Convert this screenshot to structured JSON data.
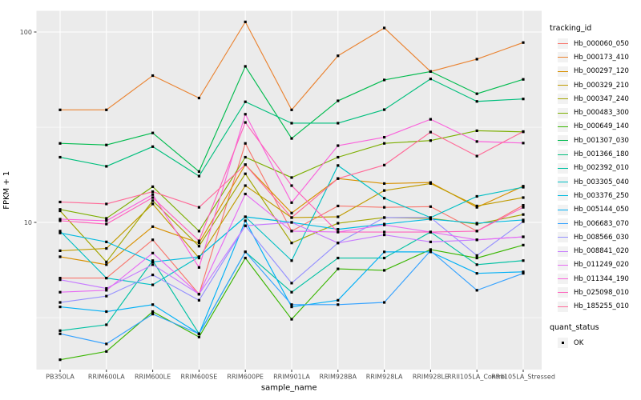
{
  "chart_data": {
    "type": "line",
    "title": "",
    "xlabel": "sample_name",
    "ylabel": "FPKM + 1",
    "y_scale": "log10",
    "y_ticks": [
      {
        "label": "100",
        "value": 100
      },
      {
        "label": "10",
        "value": 10
      }
    ],
    "y_minor_values": [
      31.6,
      3.16
    ],
    "ylim": [
      1.8,
      128
    ],
    "grid": true,
    "panel_bg": "#EBEBEB",
    "grid_color": "#FFFFFF",
    "tick_label_color": "#4D4D4D",
    "marker_color": "#000000",
    "legend_position": "right",
    "legend_title": "tracking_id",
    "categories": [
      "PB350LA",
      "RRIM600LA",
      "RRIM600LE",
      "RRIM600SE",
      "RRIM600PE",
      "RRIM901LA",
      "RRIM928BA",
      "RRIM928LA",
      "RRIM928LE",
      "RRII105LA_Control",
      "RRII105LA_Stressed"
    ],
    "series": [
      {
        "name": "Hb_000060_050",
        "color": "#F8766D",
        "values": [
          5.1,
          5.1,
          8.1,
          4.2,
          26.0,
          9.0,
          12.2,
          12.0,
          12.1,
          9.0,
          12.3
        ]
      },
      {
        "name": "Hb_000173_410",
        "color": "#EA8331",
        "values": [
          39,
          39,
          59,
          45,
          113,
          39,
          75,
          105,
          62,
          72,
          88
        ]
      },
      {
        "name": "Hb_000297_120",
        "color": "#D89000",
        "values": [
          6.6,
          6.0,
          9.5,
          7.8,
          20.1,
          11.2,
          17.0,
          16.0,
          16.2,
          12.0,
          15.5
        ]
      },
      {
        "name": "Hb_000329_210",
        "color": "#C09B00",
        "values": [
          7.1,
          7.3,
          12.5,
          6.5,
          15.6,
          10.6,
          10.7,
          14.7,
          16.0,
          12.2,
          13.5
        ]
      },
      {
        "name": "Hb_000347_240",
        "color": "#A3A500",
        "values": [
          11.5,
          6.2,
          13.0,
          7.5,
          18.0,
          7.8,
          9.9,
          10.6,
          10.5,
          9.8,
          11.0
        ]
      },
      {
        "name": "Hb_000483_300",
        "color": "#7CAE00",
        "values": [
          11.7,
          10.5,
          15.4,
          9.0,
          22.0,
          17.2,
          22.0,
          26.0,
          26.9,
          30.3,
          29.9
        ]
      },
      {
        "name": "Hb_000649_140",
        "color": "#39B600",
        "values": [
          1.9,
          2.1,
          3.4,
          2.5,
          6.5,
          3.1,
          5.7,
          5.6,
          7.2,
          6.5,
          7.6
        ]
      },
      {
        "name": "Hb_001307_030",
        "color": "#00BB4E",
        "values": [
          26.0,
          25.5,
          29.5,
          18.5,
          66.0,
          27.6,
          43.5,
          56.0,
          62.0,
          47.4,
          56.4
        ]
      },
      {
        "name": "Hb_001366_180",
        "color": "#00BF7D",
        "values": [
          22.0,
          19.7,
          25.0,
          17.5,
          43.0,
          33.2,
          33.2,
          39.1,
          56.7,
          43.2,
          44.5
        ]
      },
      {
        "name": "Hb_002392_010",
        "color": "#00C1A3",
        "values": [
          2.7,
          2.9,
          6.3,
          2.6,
          7.0,
          4.3,
          6.5,
          6.5,
          8.9,
          6.0,
          6.3
        ]
      },
      {
        "name": "Hb_003305_040",
        "color": "#00BFC4",
        "values": [
          9.0,
          5.1,
          4.7,
          6.6,
          10.7,
          6.3,
          19.9,
          13.4,
          10.6,
          13.7,
          15.3
        ]
      },
      {
        "name": "Hb_003376_250",
        "color": "#00BAE0",
        "values": [
          8.8,
          7.9,
          6.2,
          6.6,
          10.7,
          10.0,
          9.2,
          9.8,
          10.4,
          9.9,
          10.3
        ]
      },
      {
        "name": "Hb_005144_050",
        "color": "#00B0F6",
        "values": [
          3.6,
          3.4,
          3.7,
          2.6,
          10.2,
          3.6,
          3.9,
          7.0,
          7.0,
          5.4,
          5.5
        ]
      },
      {
        "name": "Hb_006683_070",
        "color": "#35A2FF",
        "values": [
          2.6,
          2.3,
          3.3,
          2.6,
          7.0,
          3.7,
          3.7,
          3.8,
          7.1,
          4.4,
          5.4
        ]
      },
      {
        "name": "Hb_008566_030",
        "color": "#9590FF",
        "values": [
          3.8,
          4.1,
          5.3,
          3.9,
          9.6,
          4.8,
          7.8,
          10.6,
          10.6,
          6.7,
          10.1
        ]
      },
      {
        "name": "Hb_008841_020",
        "color": "#C77CFF",
        "values": [
          5.0,
          4.5,
          6.0,
          4.2,
          9.6,
          10.0,
          7.8,
          8.6,
          7.9,
          8.1,
          8.4
        ]
      },
      {
        "name": "Hb_011249_020",
        "color": "#E76BF3",
        "values": [
          4.3,
          4.4,
          6.9,
          4.2,
          14.1,
          9.0,
          8.9,
          9.7,
          8.9,
          8.1,
          8.4
        ]
      },
      {
        "name": "Hb_011344_190",
        "color": "#FA62DB",
        "values": [
          10.4,
          10.2,
          14.0,
          5.8,
          37.0,
          12.7,
          25.3,
          28.0,
          34.8,
          26.6,
          26.1
        ]
      },
      {
        "name": "Hb_025098_010",
        "color": "#FF62BC",
        "values": [
          10.2,
          9.8,
          13.5,
          8.0,
          33.5,
          15.6,
          8.9,
          8.9,
          8.9,
          9.0,
          12.0
        ]
      },
      {
        "name": "Hb_185255_010",
        "color": "#FF6A98",
        "values": [
          12.8,
          12.5,
          14.5,
          12.0,
          20.1,
          10.6,
          17.0,
          20.0,
          29.8,
          22.3,
          30.0
        ]
      }
    ],
    "quant_legend": {
      "title": "quant_status",
      "items": [
        "OK"
      ]
    }
  }
}
